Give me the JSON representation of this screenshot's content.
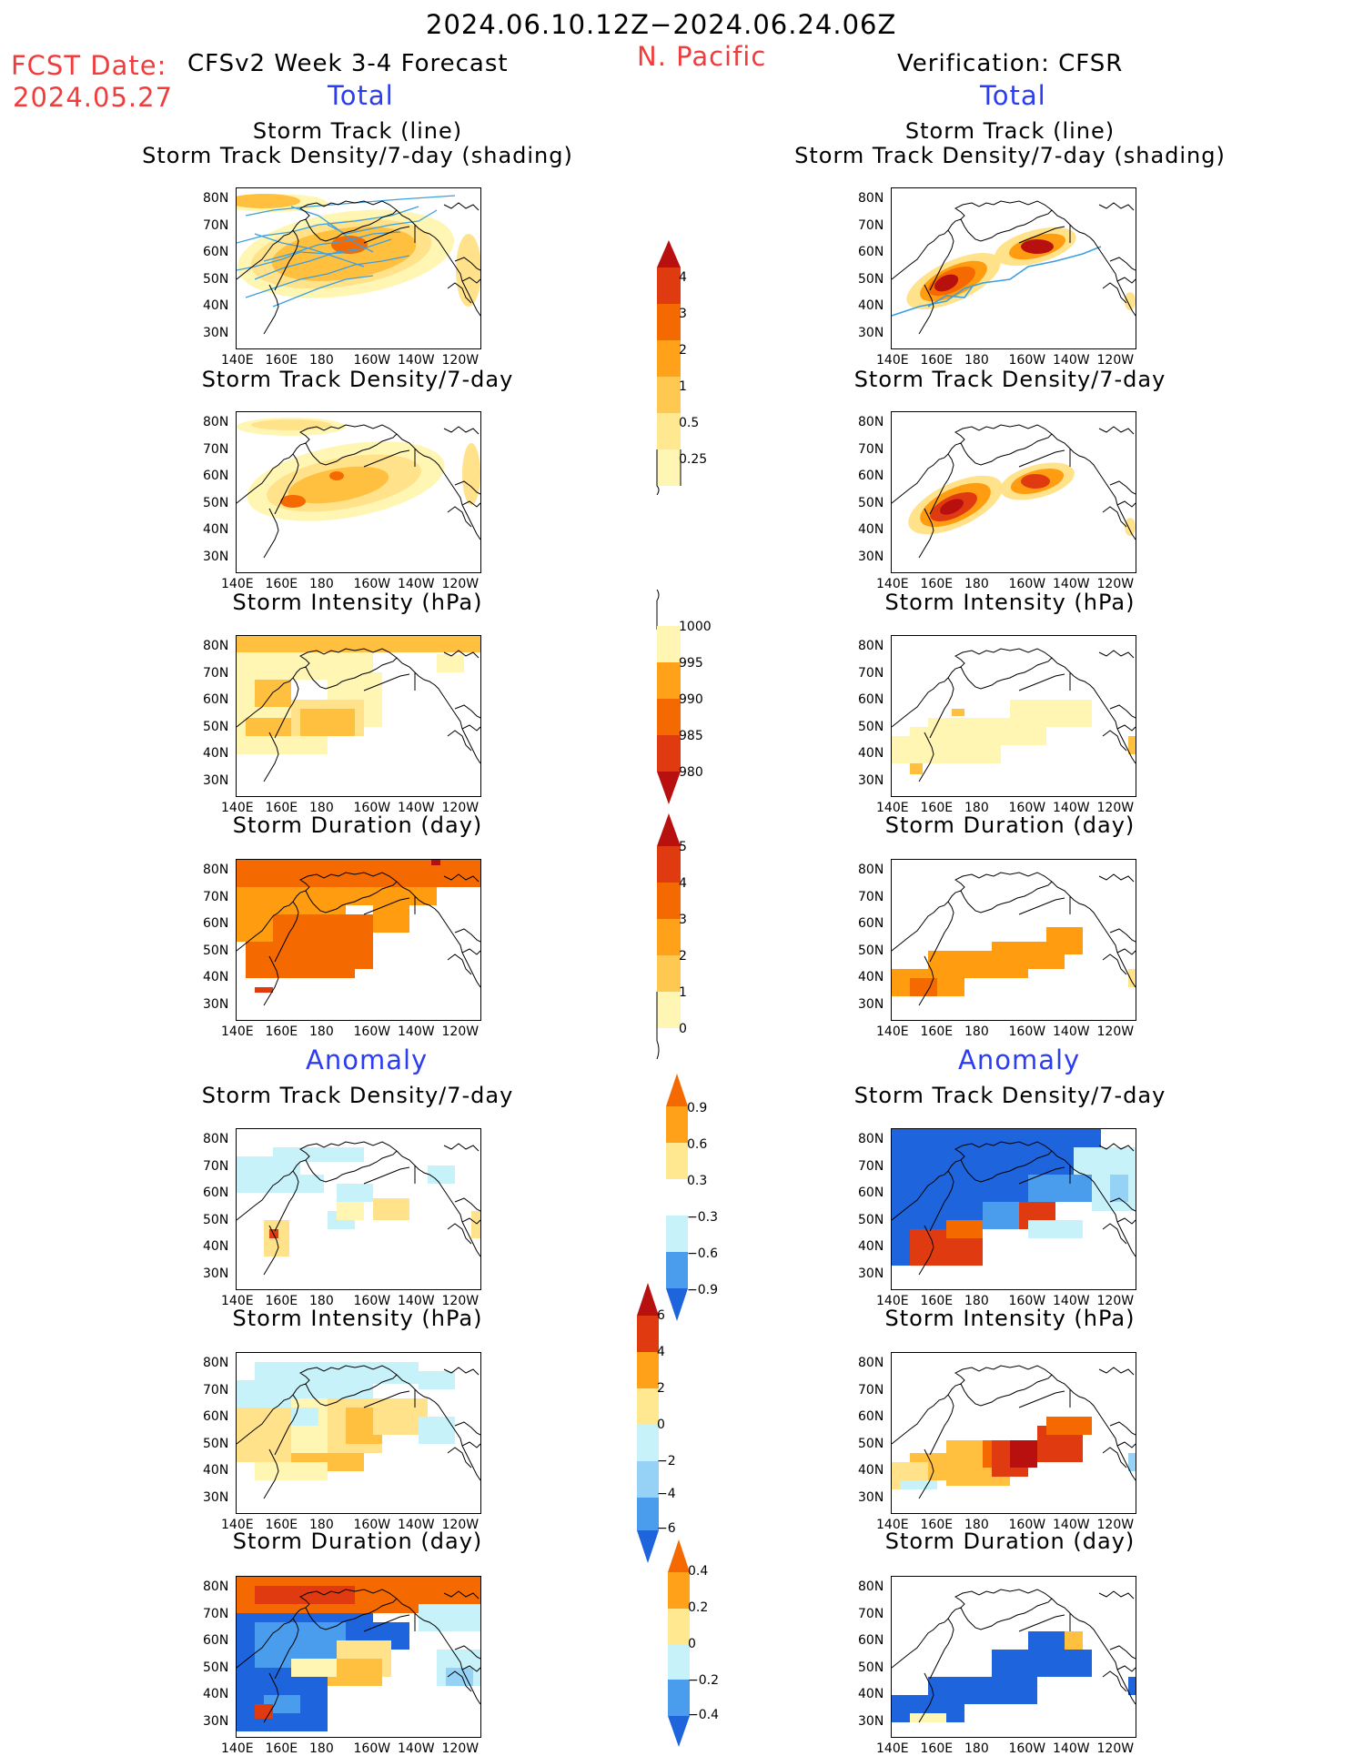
{
  "header": {
    "date_range": "2024.06.10.12Z−2024.06.24.06Z",
    "fcst_label": "FCST Date:",
    "fcst_date": "2024.05.27",
    "forecast_title": "CFSv2 Week 3-4 Forecast",
    "region": "N. Pacific",
    "verification": "Verification: CFSR",
    "total_left": "Total",
    "total_right": "Total",
    "anomaly_left": "Anomaly",
    "anomaly_right": "Anomaly"
  },
  "panel_titles": {
    "track_line": "Storm Track (line)",
    "track_shading": "Storm Track Density/7-day (shading)",
    "density": "Storm Track Density/7-day",
    "intensity": "Storm Intensity (hPa)",
    "duration": "Storm Duration (day)"
  },
  "axes": {
    "lat_labels": [
      "80N",
      "70N",
      "60N",
      "50N",
      "40N",
      "30N"
    ],
    "lon_labels": [
      "140E",
      "160E",
      "180",
      "160W",
      "140W",
      "120W"
    ]
  },
  "colorbars": {
    "density_total": [
      "4",
      "3",
      "2",
      "1",
      "0.5",
      "0.25"
    ],
    "intensity_total": [
      "1000",
      "995",
      "990",
      "985",
      "980"
    ],
    "duration_total": [
      "5",
      "4",
      "3",
      "2",
      "1",
      "0"
    ],
    "density_anom": [
      "0.9",
      "0.6",
      "0.3",
      "−0.3",
      "−0.6",
      "−0.9"
    ],
    "intensity_anom": [
      "6",
      "4",
      "2",
      "0",
      "−2",
      "−4",
      "−6"
    ],
    "duration_anom": [
      "0.4",
      "0.2",
      "0",
      "−0.2",
      "−0.4"
    ]
  },
  "colors": {
    "warm": [
      "#fff6b4",
      "#ffe28a",
      "#ffc040",
      "#ff9c10",
      "#f56a00",
      "#e03a10",
      "#b80f0f"
    ],
    "cool": [
      "#c8f2fa",
      "#96d2f5",
      "#4a9cec",
      "#1e64dc"
    ],
    "track_line": "#3c9fe0",
    "title_red": "#f03c3c",
    "title_blue": "#2c3cf0"
  }
}
